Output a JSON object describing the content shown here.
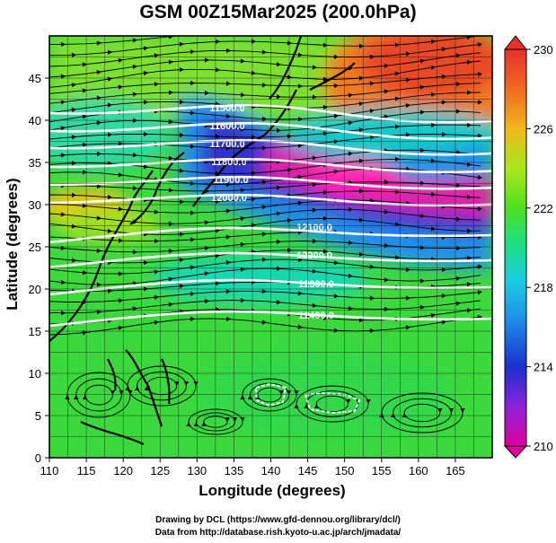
{
  "title": "GSM 00Z15Mar2025 (200.0hPa)",
  "axes": {
    "xlabel": "Longitude (degrees)",
    "ylabel": "Latitude  (degrees)",
    "xticks": [
      "110",
      "115",
      "120",
      "125",
      "130",
      "135",
      "140",
      "145",
      "150",
      "155",
      "160",
      "165"
    ],
    "yticks": [
      "0",
      "5",
      "10",
      "15",
      "20",
      "25",
      "30",
      "35",
      "40",
      "45"
    ],
    "xlim": [
      110,
      170
    ],
    "ylim": [
      0,
      50
    ]
  },
  "colorbar": {
    "ticks": [
      "230",
      "226",
      "222",
      "218",
      "214",
      "210"
    ],
    "range": [
      210,
      230
    ],
    "palette": [
      "#e0009a",
      "#8b24d8",
      "#1a2fd0",
      "#1f8fe8",
      "#18cfe0",
      "#20e07a",
      "#4ee020",
      "#a8e81a",
      "#f0b81a",
      "#f06a22",
      "#e8302a"
    ]
  },
  "contours": [
    {
      "label": "11500.0"
    },
    {
      "label": "11600.0"
    },
    {
      "label": "11700.0"
    },
    {
      "label": "11800.0"
    },
    {
      "label": "11900.0"
    },
    {
      "label": "12000.0"
    },
    {
      "label": "12100.0"
    },
    {
      "label": "12200.0"
    },
    {
      "label": "12300.0"
    },
    {
      "label": "12400.0"
    }
  ],
  "credits": {
    "line1": "Drawing by DCL (https://www.gfd-dennou.org/library/dcl/)",
    "line2": "Data from http://database.rish.kyoto-u.ac.jp/arch/jmadata/"
  }
}
